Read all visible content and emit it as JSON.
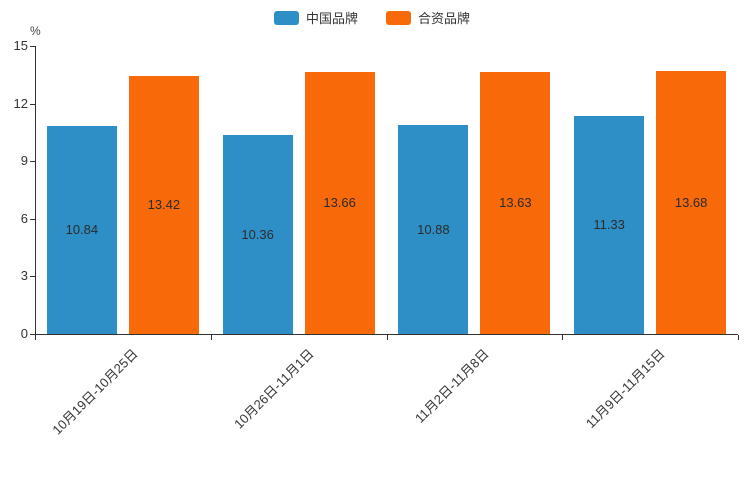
{
  "chart_data": {
    "type": "bar",
    "title": "",
    "categories": [
      "10月19日-10月25日",
      "10月26日-11月1日",
      "11月2日-11月8日",
      "11月9日-11月15日"
    ],
    "series": [
      {
        "name": "中国品牌",
        "color": "#2e8fc6",
        "values": [
          10.84,
          10.36,
          10.88,
          11.33
        ]
      },
      {
        "name": "合资品牌",
        "color": "#f8690a",
        "values": [
          13.42,
          13.66,
          13.63,
          13.68
        ]
      }
    ],
    "xlabel": "",
    "ylabel": "%",
    "ylim": [
      0,
      15
    ],
    "yticks": [
      0,
      3,
      6,
      9,
      12,
      15
    ],
    "grid": false,
    "legend_position": "top",
    "bar_labels": true,
    "bar_label_position": "inside-center"
  }
}
